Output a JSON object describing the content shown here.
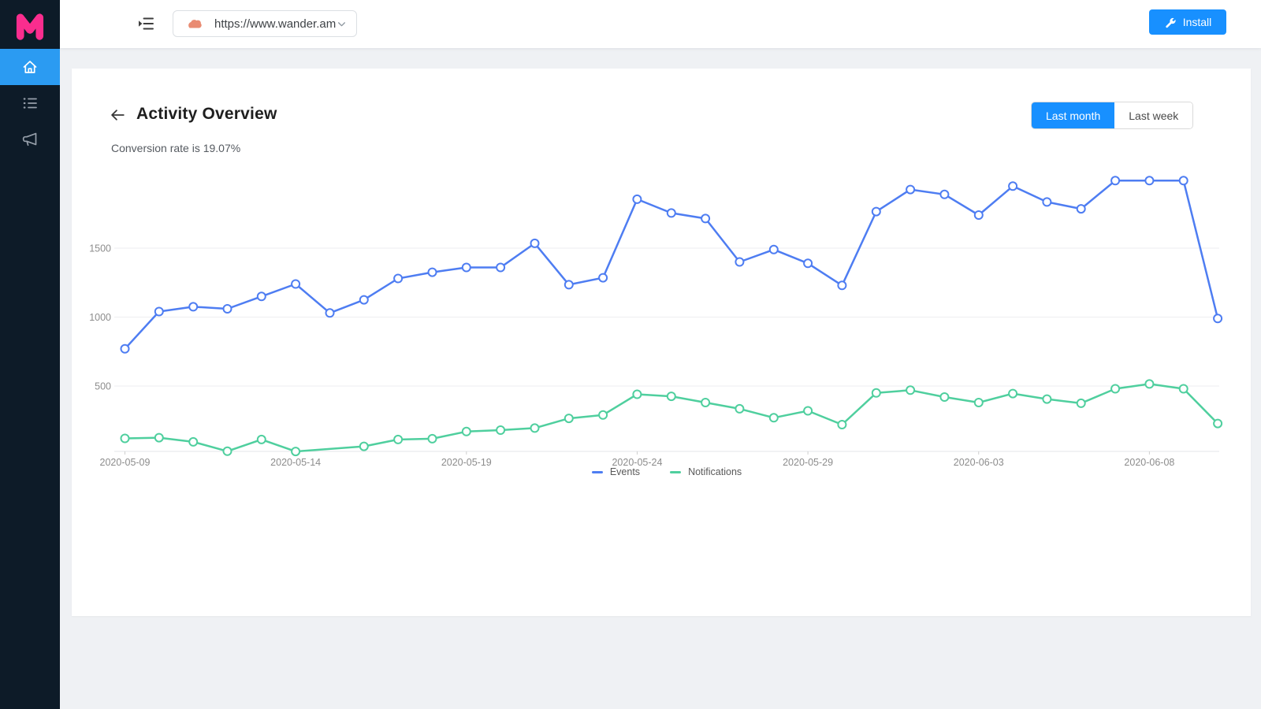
{
  "sidebar": {
    "logo_letter": "M",
    "logo_color": "#FA2D8E",
    "active_color": "#2B9BF2",
    "items": [
      {
        "id": "home",
        "active": true
      },
      {
        "id": "list",
        "active": false
      },
      {
        "id": "announcements",
        "active": false
      }
    ]
  },
  "topbar": {
    "site_selector": {
      "value": "https://www.wander.am"
    },
    "install_label": "Install",
    "accent_color": "#1890FF"
  },
  "header": {
    "title": "Activity Overview",
    "subtitle": "Conversion rate is 19.07%",
    "range_buttons": [
      {
        "label": "Last month",
        "active": true
      },
      {
        "label": "Last week",
        "active": false
      }
    ]
  },
  "chart_data": {
    "type": "line",
    "title": "",
    "xlabel": "",
    "ylabel": "",
    "grid": true,
    "legend_position": "bottom",
    "ylim": [
      0,
      2075
    ],
    "yticks": [
      500,
      1000,
      1500
    ],
    "xtick_labels": [
      "2020-05-09",
      "2020-05-14",
      "2020-05-19",
      "2020-05-24",
      "2020-05-29",
      "2020-06-03",
      "2020-06-08"
    ],
    "x": [
      "2020-05-09",
      "2020-05-10",
      "2020-05-11",
      "2020-05-12",
      "2020-05-13",
      "2020-05-14",
      "2020-05-15",
      "2020-05-16",
      "2020-05-17",
      "2020-05-18",
      "2020-05-19",
      "2020-05-20",
      "2020-05-21",
      "2020-05-22",
      "2020-05-23",
      "2020-05-24",
      "2020-05-25",
      "2020-05-26",
      "2020-05-27",
      "2020-05-28",
      "2020-05-29",
      "2020-05-30",
      "2020-05-31",
      "2020-06-01",
      "2020-06-02",
      "2020-06-03",
      "2020-06-04",
      "2020-06-05",
      "2020-06-06",
      "2020-06-07",
      "2020-06-08",
      "2020-06-09",
      "2020-06-10"
    ],
    "series": [
      {
        "name": "Events",
        "color": "#4E7DF2",
        "values": [
          770,
          1040,
          1075,
          1060,
          1150,
          1240,
          1030,
          1125,
          1280,
          1325,
          1360,
          1360,
          1535,
          1235,
          1285,
          1855,
          1755,
          1715,
          1400,
          1490,
          1390,
          1230,
          1765,
          1925,
          1890,
          1740,
          1950,
          1835,
          1785,
          1990,
          1990,
          1990,
          990
        ]
      },
      {
        "name": "Notifications",
        "color": "#4FCF9E",
        "values": [
          120,
          125,
          95,
          27,
          112,
          25,
          null,
          62,
          112,
          118,
          170,
          180,
          195,
          265,
          290,
          440,
          425,
          380,
          335,
          270,
          320,
          220,
          450,
          470,
          420,
          380,
          445,
          405,
          375,
          480,
          515,
          480,
          228
        ]
      }
    ]
  }
}
